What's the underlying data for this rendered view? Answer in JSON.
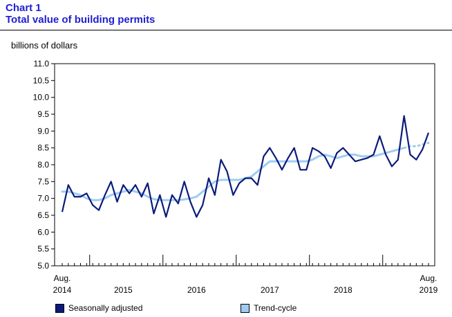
{
  "header": {
    "chart_label": "Chart 1",
    "title": "Total value of building permits"
  },
  "chart_data": {
    "type": "line",
    "title": "Total value of building permits",
    "ylabel": "billions of dollars",
    "xlabel": "",
    "ylim": [
      5.0,
      11.0
    ],
    "yticks": [
      "5.0",
      "5.5",
      "6.0",
      "6.5",
      "7.0",
      "7.5",
      "8.0",
      "8.5",
      "9.0",
      "9.5",
      "10.0",
      "10.5",
      "11.0"
    ],
    "x_start": "2014-08",
    "x_end": "2019-08",
    "x_tick_labels": [
      {
        "month": 0,
        "line1": "Aug.",
        "line2": "2014"
      },
      {
        "month": 10,
        "line1": "",
        "line2": "2015"
      },
      {
        "month": 22,
        "line1": "",
        "line2": "2016"
      },
      {
        "month": 34,
        "line1": "",
        "line2": "2017"
      },
      {
        "month": 46,
        "line1": "",
        "line2": "2018"
      },
      {
        "month": 60,
        "line1": "Aug.",
        "line2": "2019"
      }
    ],
    "year_boundaries": [
      5,
      17,
      29,
      41,
      53
    ],
    "grid": false,
    "legend_position": "bottom",
    "series": [
      {
        "name": "Seasonally adjusted",
        "color": "#0b1b7a",
        "style": "solid",
        "values": [
          6.6,
          7.4,
          7.05,
          7.05,
          7.15,
          6.8,
          6.65,
          7.1,
          7.5,
          6.9,
          7.4,
          7.15,
          7.4,
          7.05,
          7.45,
          6.55,
          7.1,
          6.45,
          7.1,
          6.85,
          7.5,
          6.9,
          6.45,
          6.8,
          7.6,
          7.1,
          8.15,
          7.8,
          7.1,
          7.45,
          7.6,
          7.6,
          7.4,
          8.25,
          8.5,
          8.2,
          7.85,
          8.2,
          8.5,
          7.85,
          7.85,
          8.5,
          8.4,
          8.25,
          7.9,
          8.35,
          8.5,
          8.3,
          8.1,
          8.15,
          8.2,
          8.3,
          8.85,
          8.3,
          7.95,
          8.15,
          9.45,
          8.3,
          8.15,
          8.45,
          8.95
        ]
      },
      {
        "name": "Trend-cycle",
        "color": "#9fcbf2",
        "style": "solid-with-dotted-end",
        "values": [
          7.2,
          7.2,
          7.15,
          7.1,
          7.0,
          6.95,
          6.95,
          7.0,
          7.1,
          7.15,
          7.2,
          7.25,
          7.2,
          7.15,
          7.05,
          6.98,
          6.95,
          6.95,
          6.95,
          6.95,
          6.97,
          7.0,
          7.05,
          7.2,
          7.35,
          7.5,
          7.55,
          7.55,
          7.55,
          7.55,
          7.6,
          7.65,
          7.8,
          7.95,
          8.1,
          8.1,
          8.1,
          8.1,
          8.1,
          8.1,
          8.1,
          8.15,
          8.25,
          8.3,
          8.25,
          8.2,
          8.25,
          8.3,
          8.3,
          8.25,
          8.25,
          8.25,
          8.3,
          8.35,
          8.4,
          8.45,
          8.5,
          8.55,
          8.55,
          8.6,
          8.65
        ],
        "dotted_from_index": 56
      }
    ]
  },
  "legend": {
    "seasonal_label": "Seasonally adjusted",
    "seasonal_color": "#0b1b7a",
    "trend_label": "Trend-cycle",
    "trend_color": "#9fcbf2"
  }
}
